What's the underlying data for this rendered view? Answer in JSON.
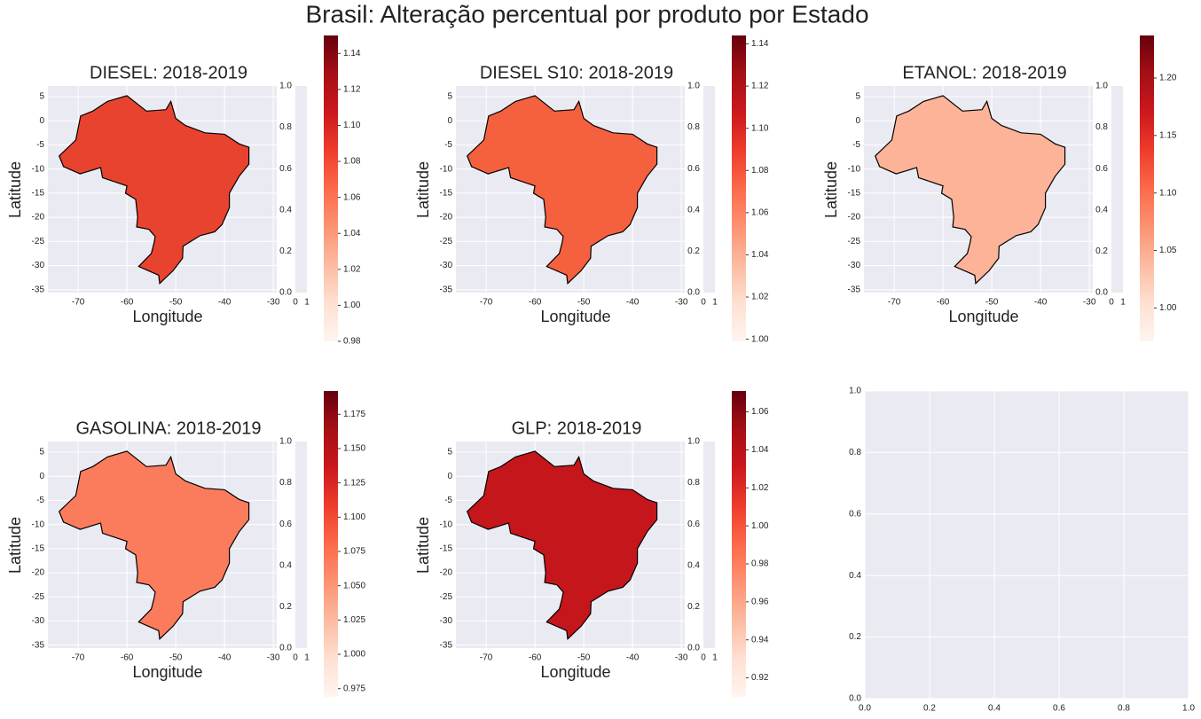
{
  "title": "Brasil: Alteração percentual por produto por Estado",
  "cmap": [
    "#fff5f0",
    "#fee0d2",
    "#fcbba1",
    "#fc9272",
    "#fb6a4a",
    "#ef3b2c",
    "#cb181d",
    "#a50f15",
    "#67000d"
  ],
  "chart_data": [
    {
      "type": "map",
      "title": "DIESEL: 2018-2019",
      "xlabel": "Longitude",
      "ylabel": "Latitude",
      "xlim": [
        -76.2,
        -29.3
      ],
      "ylim": [
        -35.6,
        7.2
      ],
      "xticks": [
        -70,
        -60,
        -50,
        -40,
        -30
      ],
      "yticks": [
        5,
        0,
        -5,
        -10,
        -15,
        -20,
        -25,
        -30,
        -35
      ],
      "color": "#e8432f",
      "colorbar": {
        "lim": [
          0.98,
          1.15
        ],
        "ticks": [
          0.98,
          {
            "value": 1.0,
            "label": "1.00"
          },
          1.02,
          1.04,
          1.06,
          1.08,
          {
            "value": 1.1,
            "label": "1.10"
          },
          1.12,
          1.14
        ]
      },
      "inset": {
        "xlim": [
          0,
          1
        ],
        "ylim": [
          0,
          1
        ],
        "xticks": [
          0,
          1
        ],
        "yticks": [
          {
            "value": 0,
            "label": "0.0"
          },
          0.2,
          0.4,
          0.6,
          0.8,
          {
            "value": 1,
            "label": "1.0"
          }
        ]
      }
    },
    {
      "type": "map",
      "title": "DIESEL S10: 2018-2019",
      "xlabel": "Longitude",
      "ylabel": "Latitude",
      "xlim": [
        -76.2,
        -29.3
      ],
      "ylim": [
        -35.6,
        7.2
      ],
      "xticks": [
        -70,
        -60,
        -50,
        -40,
        -30
      ],
      "yticks": [
        5,
        0,
        -5,
        -10,
        -15,
        -20,
        -25,
        -30,
        -35
      ],
      "color": "#f5603f",
      "colorbar": {
        "lim": [
          0.999,
          1.144
        ],
        "ticks": [
          {
            "value": 1.0,
            "label": "1.00"
          },
          1.02,
          1.04,
          1.06,
          1.08,
          {
            "value": 1.1,
            "label": "1.10"
          },
          1.12,
          1.14
        ]
      },
      "inset": {
        "xlim": [
          0,
          1
        ],
        "ylim": [
          0,
          1
        ],
        "xticks": [
          0,
          1
        ],
        "yticks": [
          {
            "value": 0,
            "label": "0.0"
          },
          0.2,
          0.4,
          0.6,
          0.8,
          {
            "value": 1,
            "label": "1.0"
          }
        ]
      }
    },
    {
      "type": "map",
      "title": "ETANOL: 2018-2019",
      "xlabel": "Longitude",
      "ylabel": "Latitude",
      "xlim": [
        -76.2,
        -29.3
      ],
      "ylim": [
        -35.6,
        7.2
      ],
      "xticks": [
        -70,
        -60,
        -50,
        -40,
        -30
      ],
      "yticks": [
        5,
        0,
        -5,
        -10,
        -15,
        -20,
        -25,
        -30,
        -35
      ],
      "color": "#fcb398",
      "colorbar": {
        "lim": [
          0.971,
          1.237
        ],
        "ticks": [
          {
            "value": 1.0,
            "label": "1.00"
          },
          1.05,
          {
            "value": 1.1,
            "label": "1.10"
          },
          1.15,
          {
            "value": 1.2,
            "label": "1.20"
          }
        ]
      },
      "inset": {
        "xlim": [
          0,
          1
        ],
        "ylim": [
          0,
          1
        ],
        "xticks": [
          0,
          1
        ],
        "yticks": [
          {
            "value": 0,
            "label": "0.0"
          },
          0.2,
          0.4,
          0.6,
          0.8,
          {
            "value": 1,
            "label": "1.0"
          }
        ]
      }
    },
    {
      "type": "map",
      "title": "GASOLINA: 2018-2019",
      "xlabel": "Longitude",
      "ylabel": "Latitude",
      "xlim": [
        -76.2,
        -29.3
      ],
      "ylim": [
        -35.6,
        7.2
      ],
      "xticks": [
        -70,
        -60,
        -50,
        -40,
        -30
      ],
      "yticks": [
        5,
        0,
        -5,
        -10,
        -15,
        -20,
        -25,
        -30,
        -35
      ],
      "color": "#fb7c5c",
      "colorbar": {
        "lim": [
          0.969,
          1.192
        ],
        "ticks": [
          0.975,
          {
            "value": 1.0,
            "label": "1.000"
          },
          1.025,
          {
            "value": 1.05,
            "label": "1.050"
          },
          1.075,
          {
            "value": 1.1,
            "label": "1.100"
          },
          1.125,
          {
            "value": 1.15,
            "label": "1.150"
          },
          1.175
        ]
      },
      "inset": {
        "xlim": [
          0,
          1
        ],
        "ylim": [
          0,
          1
        ],
        "xticks": [
          0,
          1
        ],
        "yticks": [
          {
            "value": 0,
            "label": "0.0"
          },
          0.2,
          0.4,
          0.6,
          0.8,
          {
            "value": 1,
            "label": "1.0"
          }
        ]
      }
    },
    {
      "type": "map",
      "title": "GLP: 2018-2019",
      "xlabel": "Longitude",
      "ylabel": "Latitude",
      "xlim": [
        -76.2,
        -29.3
      ],
      "ylim": [
        -35.6,
        7.2
      ],
      "xticks": [
        -70,
        -60,
        -50,
        -40,
        -30
      ],
      "yticks": [
        5,
        0,
        -5,
        -10,
        -15,
        -20,
        -25,
        -30,
        -35
      ],
      "color": "#c5161c",
      "colorbar": {
        "lim": [
          0.91,
          1.071
        ],
        "ticks": [
          0.92,
          0.94,
          0.96,
          0.98,
          {
            "value": 1.0,
            "label": "1.00"
          },
          1.02,
          1.04,
          1.06
        ]
      },
      "inset": {
        "xlim": [
          0,
          1
        ],
        "ylim": [
          0,
          1
        ],
        "xticks": [
          0,
          1
        ],
        "yticks": [
          {
            "value": 0,
            "label": "0.0"
          },
          0.2,
          0.4,
          0.6,
          0.8,
          {
            "value": 1,
            "label": "1.0"
          }
        ]
      }
    },
    {
      "type": "axes",
      "xlim": [
        0,
        1
      ],
      "ylim": [
        0,
        1
      ],
      "grid": true,
      "xticks": [
        {
          "value": 0,
          "label": "0.0"
        },
        0.2,
        0.4,
        0.6,
        0.8,
        {
          "value": 1,
          "label": "1.0"
        }
      ],
      "yticks": [
        {
          "value": 0,
          "label": "0.0"
        },
        0.2,
        0.4,
        0.6,
        0.8,
        {
          "value": 1,
          "label": "1.0"
        }
      ]
    }
  ]
}
